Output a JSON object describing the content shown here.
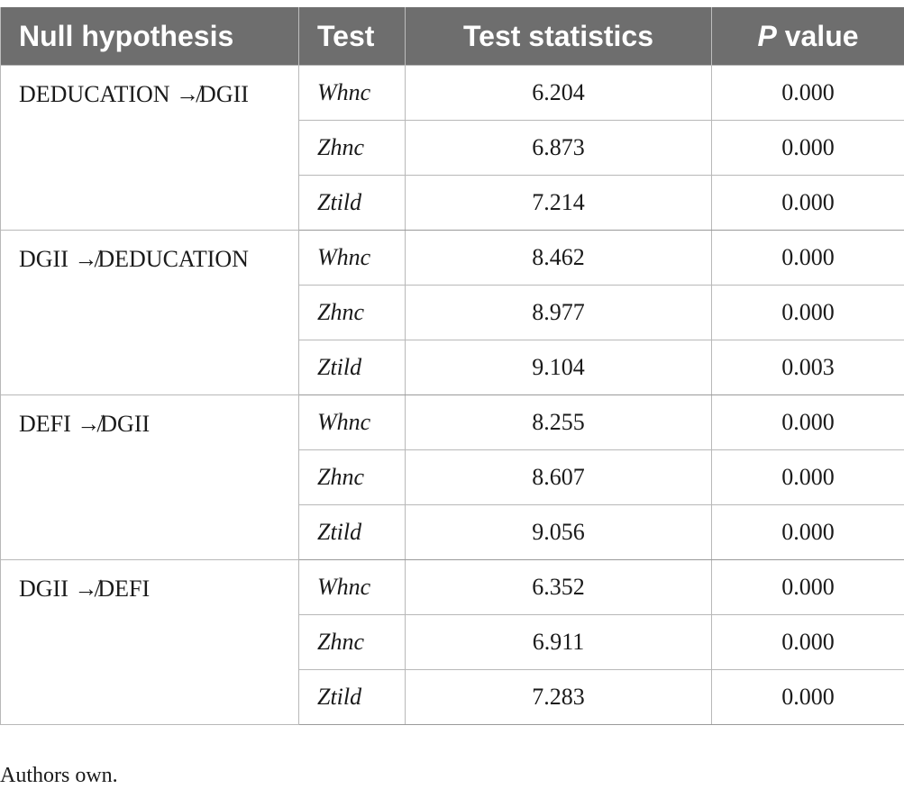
{
  "table": {
    "headers": {
      "hypothesis": "Null hypothesis",
      "test": "Test",
      "statistics": "Test statistics",
      "p_italic": "P",
      "p_rest": " value"
    },
    "groups": [
      {
        "hypothesis": "DEDUCATION ↛DGII",
        "rows": [
          {
            "test": "Whnc",
            "stat": "6.204",
            "p": "0.000"
          },
          {
            "test": "Zhnc",
            "stat": "6.873",
            "p": "0.000"
          },
          {
            "test": "Ztild",
            "stat": "7.214",
            "p": "0.000"
          }
        ]
      },
      {
        "hypothesis": "DGII ↛DEDUCATION",
        "rows": [
          {
            "test": "Whnc",
            "stat": "8.462",
            "p": "0.000"
          },
          {
            "test": "Zhnc",
            "stat": "8.977",
            "p": "0.000"
          },
          {
            "test": "Ztild",
            "stat": "9.104",
            "p": "0.003"
          }
        ]
      },
      {
        "hypothesis": "DEFI ↛DGII",
        "rows": [
          {
            "test": "Whnc",
            "stat": "8.255",
            "p": "0.000"
          },
          {
            "test": "Zhnc",
            "stat": "8.607",
            "p": "0.000"
          },
          {
            "test": "Ztild",
            "stat": "9.056",
            "p": "0.000"
          }
        ]
      },
      {
        "hypothesis": "DGII ↛DEFI",
        "rows": [
          {
            "test": "Whnc",
            "stat": "6.352",
            "p": "0.000"
          },
          {
            "test": "Zhnc",
            "stat": "6.911",
            "p": "0.000"
          },
          {
            "test": "Ztild",
            "stat": "7.283",
            "p": "0.000"
          }
        ]
      }
    ]
  },
  "footnote": "Authors own."
}
